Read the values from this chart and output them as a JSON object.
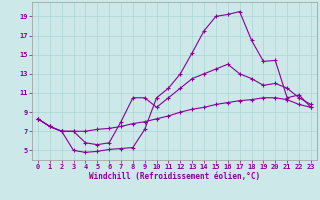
{
  "xlabel": "Windchill (Refroidissement éolien,°C)",
  "xlim": [
    -0.5,
    23.5
  ],
  "ylim": [
    4.0,
    20.5
  ],
  "xticks": [
    0,
    1,
    2,
    3,
    4,
    5,
    6,
    7,
    8,
    9,
    10,
    11,
    12,
    13,
    14,
    15,
    16,
    17,
    18,
    19,
    20,
    21,
    22,
    23
  ],
  "yticks": [
    5,
    7,
    9,
    11,
    13,
    15,
    17,
    19
  ],
  "bg_color": "#cce8e8",
  "grid_color": "#aad4d4",
  "line_color": "#880099",
  "line1_x": [
    0,
    1,
    2,
    3,
    4,
    5,
    6,
    7,
    8,
    9,
    10,
    11,
    12,
    13,
    14,
    15,
    16,
    17,
    18,
    19,
    20,
    21,
    22,
    23
  ],
  "line1_y": [
    8.3,
    7.5,
    7.0,
    5.0,
    4.8,
    4.9,
    5.1,
    5.2,
    5.3,
    7.2,
    10.5,
    11.5,
    13.0,
    15.2,
    17.5,
    19.0,
    19.2,
    19.5,
    16.5,
    14.3,
    14.4,
    10.5,
    10.8,
    9.5
  ],
  "line2_x": [
    0,
    1,
    2,
    3,
    4,
    5,
    6,
    7,
    8,
    9,
    10,
    11,
    12,
    13,
    14,
    15,
    16,
    17,
    18,
    19,
    20,
    21,
    22,
    23
  ],
  "line2_y": [
    8.3,
    7.5,
    7.0,
    7.0,
    5.8,
    5.6,
    5.8,
    8.0,
    10.5,
    10.5,
    9.5,
    10.5,
    11.5,
    12.5,
    13.0,
    13.5,
    14.0,
    13.0,
    12.5,
    11.8,
    12.0,
    11.5,
    10.5,
    9.8
  ],
  "line3_x": [
    0,
    1,
    2,
    3,
    4,
    5,
    6,
    7,
    8,
    9,
    10,
    11,
    12,
    13,
    14,
    15,
    16,
    17,
    18,
    19,
    20,
    21,
    22,
    23
  ],
  "line3_y": [
    8.3,
    7.5,
    7.0,
    7.0,
    7.0,
    7.2,
    7.3,
    7.5,
    7.8,
    8.0,
    8.3,
    8.6,
    9.0,
    9.3,
    9.5,
    9.8,
    10.0,
    10.2,
    10.3,
    10.5,
    10.5,
    10.3,
    9.8,
    9.5
  ],
  "marker": "+",
  "markersize": 3,
  "linewidth": 0.8,
  "tick_fontsize": 5,
  "xlabel_fontsize": 5.5
}
